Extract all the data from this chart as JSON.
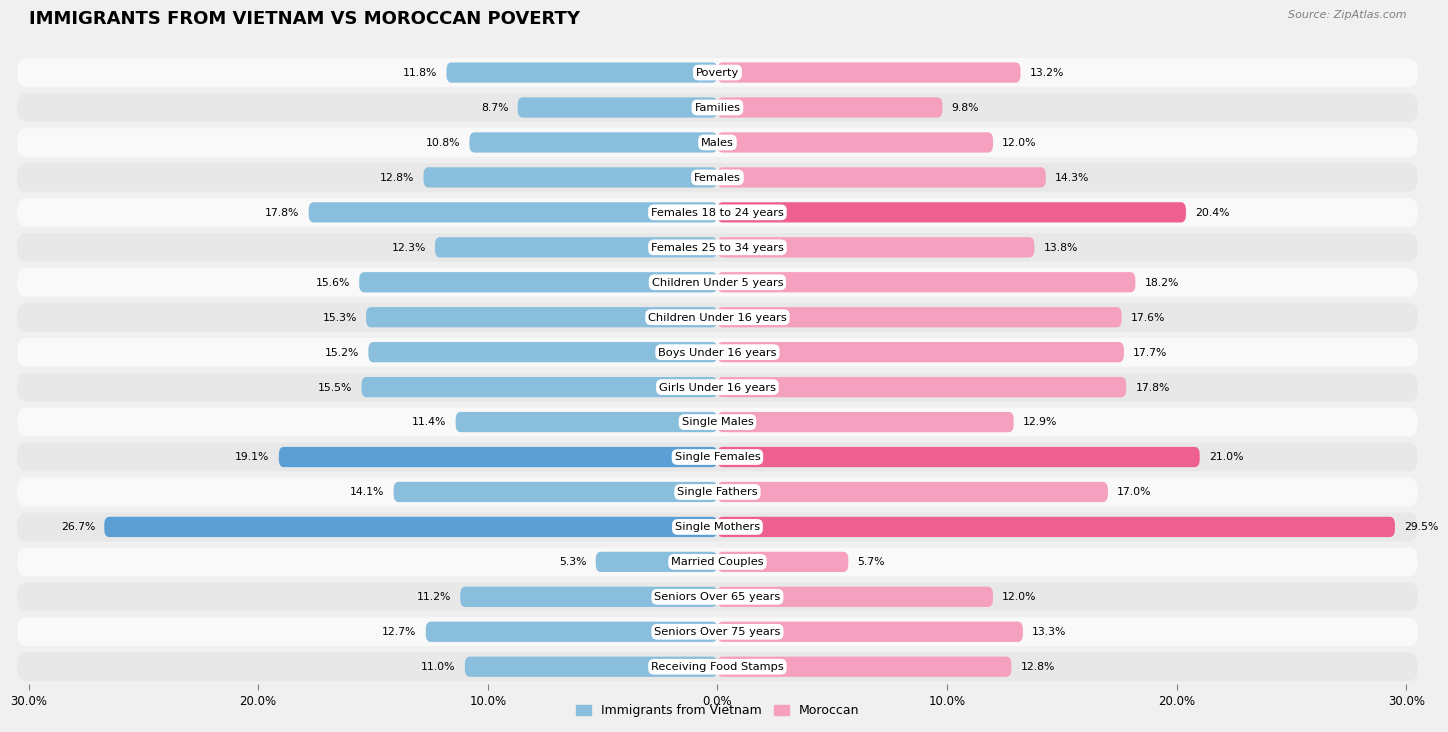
{
  "title": "IMMIGRANTS FROM VIETNAM VS MOROCCAN POVERTY",
  "source": "Source: ZipAtlas.com",
  "categories": [
    "Poverty",
    "Families",
    "Males",
    "Females",
    "Females 18 to 24 years",
    "Females 25 to 34 years",
    "Children Under 5 years",
    "Children Under 16 years",
    "Boys Under 16 years",
    "Girls Under 16 years",
    "Single Males",
    "Single Females",
    "Single Fathers",
    "Single Mothers",
    "Married Couples",
    "Seniors Over 65 years",
    "Seniors Over 75 years",
    "Receiving Food Stamps"
  ],
  "vietnam_values": [
    11.8,
    8.7,
    10.8,
    12.8,
    17.8,
    12.3,
    15.6,
    15.3,
    15.2,
    15.5,
    11.4,
    19.1,
    14.1,
    26.7,
    5.3,
    11.2,
    12.7,
    11.0
  ],
  "moroccan_values": [
    13.2,
    9.8,
    12.0,
    14.3,
    20.4,
    13.8,
    18.2,
    17.6,
    17.7,
    17.8,
    12.9,
    21.0,
    17.0,
    29.5,
    5.7,
    12.0,
    13.3,
    12.8
  ],
  "vietnam_color": "#89bedd",
  "moroccan_color": "#f5a0be",
  "vietnam_highlight_indices": [
    11,
    13
  ],
  "moroccan_highlight_indices": [
    4,
    11,
    13
  ],
  "vietnam_highlight_color": "#5b9fd4",
  "moroccan_highlight_color": "#ee6090",
  "background_color": "#f0f0f0",
  "row_light_color": "#f9f9f9",
  "row_dark_color": "#e8e8e8",
  "axis_limit": 30.0,
  "legend_vietnam": "Immigrants from Vietnam",
  "legend_moroccan": "Moroccan",
  "bar_height": 0.58,
  "title_fontsize": 13,
  "label_fontsize": 8.2,
  "value_fontsize": 7.8,
  "tick_fontsize": 8.5
}
